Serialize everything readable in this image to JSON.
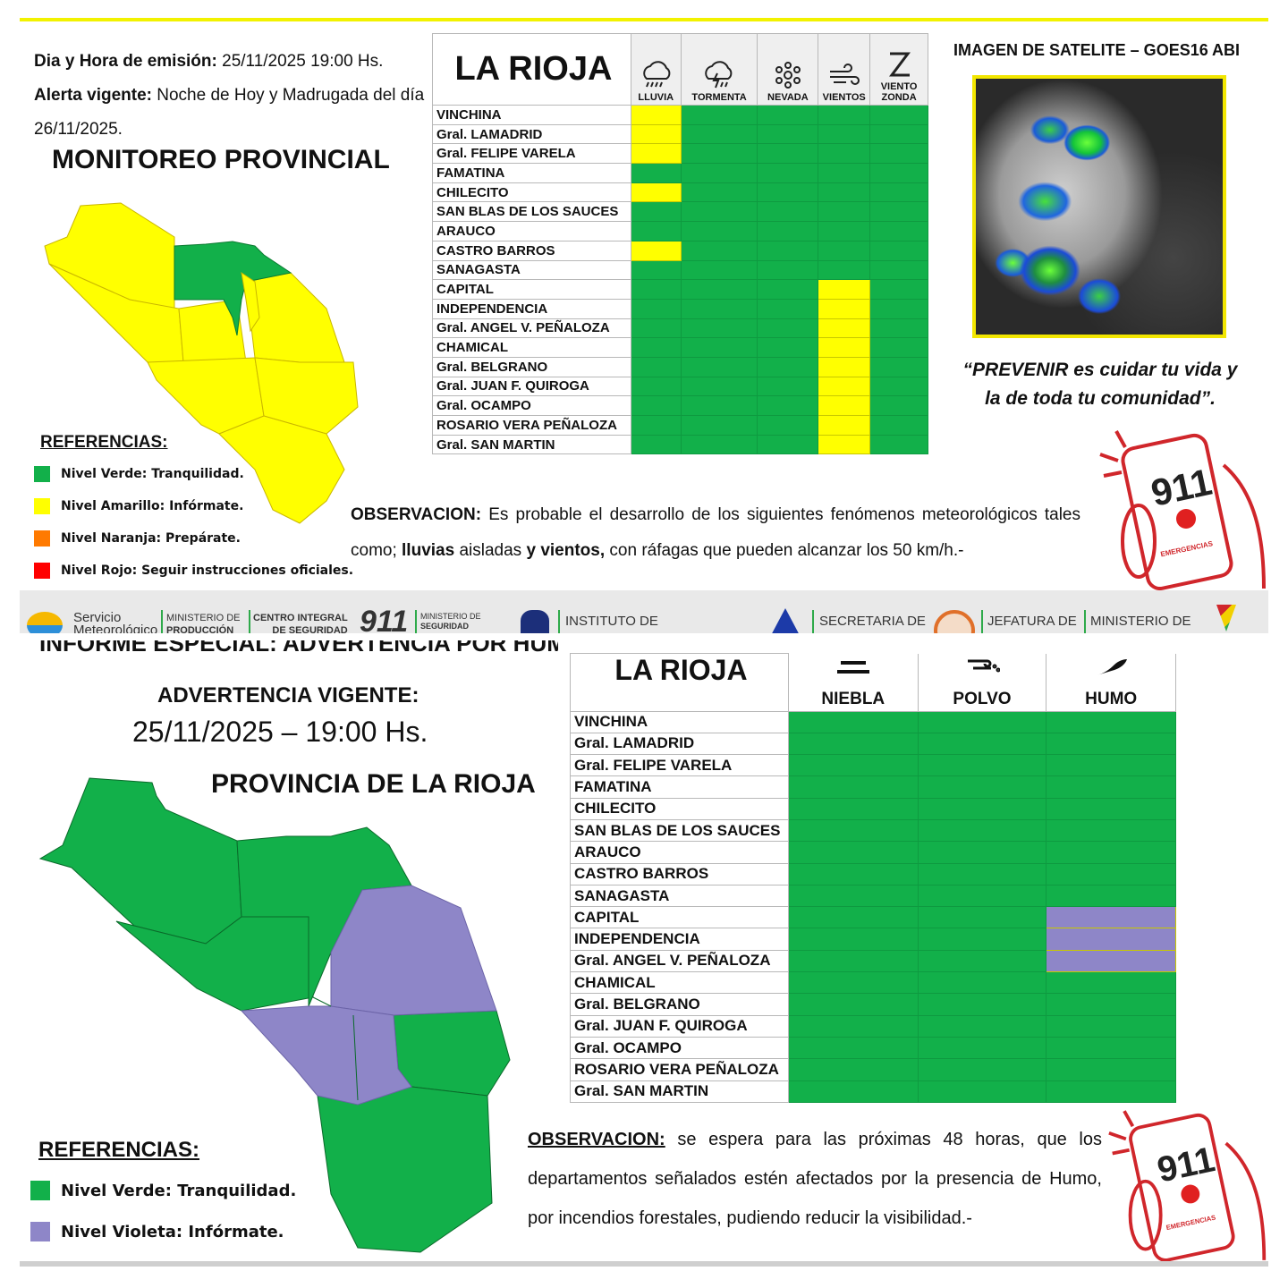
{
  "top": {
    "emission_label": "Dia y Hora de emisión:",
    "emission_value": "25/11/2025  19:00 Hs.",
    "alert_label": "Alerta vigente:",
    "alert_value": "Noche de Hoy y Madrugada del día",
    "alert_value2": "26/11/2025.",
    "title": "MONITOREO PROVINCIAL",
    "references_title": "REFERENCIAS:",
    "references": [
      {
        "label": "Nivel Verde: Tranquilidad.",
        "color": "#12b04a"
      },
      {
        "label": "Nivel Amarillo: Infórmate.",
        "color": "#ffff00"
      },
      {
        "label": "Nivel Naranja: Prepárate.",
        "color": "#ff7a00"
      },
      {
        "label": "Nivel Rojo: Seguir instrucciones oficiales.",
        "color": "#ff0000"
      }
    ],
    "table": {
      "province": "LA RIOJA",
      "columns": [
        {
          "label": "LLUVIA",
          "icon": "rain-cloud-icon"
        },
        {
          "label": "TORMENTA",
          "icon": "storm-cloud-icon"
        },
        {
          "label": "NEVADA",
          "icon": "snowflake-icon"
        },
        {
          "label": "VIENTOS",
          "icon": "wind-icon"
        },
        {
          "label": "VIENTO ZONDA",
          "icon": "zonda-icon"
        }
      ],
      "rows": [
        {
          "name": "VINCHINA",
          "levels": [
            "y",
            "g",
            "g",
            "g",
            "g"
          ]
        },
        {
          "name": "Gral. LAMADRID",
          "levels": [
            "y",
            "g",
            "g",
            "g",
            "g"
          ]
        },
        {
          "name": "Gral. FELIPE VARELA",
          "levels": [
            "y",
            "g",
            "g",
            "g",
            "g"
          ]
        },
        {
          "name": "FAMATINA",
          "levels": [
            "g",
            "g",
            "g",
            "g",
            "g"
          ]
        },
        {
          "name": "CHILECITO",
          "levels": [
            "y",
            "g",
            "g",
            "g",
            "g"
          ]
        },
        {
          "name": "SAN BLAS DE LOS SAUCES",
          "levels": [
            "g",
            "g",
            "g",
            "g",
            "g"
          ]
        },
        {
          "name": "ARAUCO",
          "levels": [
            "g",
            "g",
            "g",
            "g",
            "g"
          ]
        },
        {
          "name": "CASTRO BARROS",
          "levels": [
            "y",
            "g",
            "g",
            "g",
            "g"
          ]
        },
        {
          "name": "SANAGASTA",
          "levels": [
            "g",
            "g",
            "g",
            "g",
            "g"
          ]
        },
        {
          "name": "CAPITAL",
          "levels": [
            "g",
            "g",
            "g",
            "y",
            "g"
          ]
        },
        {
          "name": "INDEPENDENCIA",
          "levels": [
            "g",
            "g",
            "g",
            "y",
            "g"
          ]
        },
        {
          "name": "Gral. ANGEL V. PEÑALOZA",
          "levels": [
            "g",
            "g",
            "g",
            "y",
            "g"
          ]
        },
        {
          "name": "CHAMICAL",
          "levels": [
            "g",
            "g",
            "g",
            "y",
            "g"
          ]
        },
        {
          "name": "Gral. BELGRANO",
          "levels": [
            "g",
            "g",
            "g",
            "y",
            "g"
          ]
        },
        {
          "name": "Gral. JUAN F. QUIROGA",
          "levels": [
            "g",
            "g",
            "g",
            "y",
            "g"
          ]
        },
        {
          "name": "Gral. OCAMPO",
          "levels": [
            "g",
            "g",
            "g",
            "y",
            "g"
          ]
        },
        {
          "name": "ROSARIO VERA PEÑALOZA",
          "levels": [
            "g",
            "g",
            "g",
            "y",
            "g"
          ]
        },
        {
          "name": "Gral. SAN MARTIN",
          "levels": [
            "g",
            "g",
            "g",
            "y",
            "g"
          ]
        }
      ]
    },
    "satellite_title": "IMAGEN DE SATELITE – GOES16 ABI",
    "quote1": "“PREVENIR es cuidar tu vida y",
    "quote2": "la de toda tu comunidad”.",
    "obs_label": "OBSERVACION:",
    "obs_text1": "Es probable el desarrollo de los siguientes fenómenos meteorológicos tales como;",
    "obs_bold1": "lluvias",
    "obs_text2": "aisladas",
    "obs_bold2": "y vientos,",
    "obs_text3": "con ráfagas que pueden alcanzar los 50 km/h.-",
    "badge": {
      "number": "911",
      "label": "EMERGENCIAS"
    }
  },
  "logos": [
    "Servicio",
    "Meteorológico",
    "MINISTERIO DE",
    "PRODUCCIÓN",
    "CENTRO INTEGRAL",
    "DE SEGURIDAD",
    "911",
    "MINISTERIO DE",
    "SEGURIDAD",
    "INSTITUTO DE",
    "SECRETARIA DE",
    "JEFATURA DE",
    "MINISTERIO DE"
  ],
  "bottom": {
    "cut_title": "INFORME ESPECIAL: ADVERTENCIA POR HUMO",
    "warning_label": "ADVERTENCIA VIGENTE:",
    "warning_value": "25/11/2025 – 19:00 Hs.",
    "title": "PROVINCIA DE LA RIOJA",
    "references_title": "REFERENCIAS:",
    "references": [
      {
        "label": "Nivel Verde: Tranquilidad.",
        "color": "#12b04a"
      },
      {
        "label": "Nivel Violeta: Infórmate.",
        "color": "#8e86c8"
      }
    ],
    "table": {
      "province": "LA RIOJA",
      "columns": [
        {
          "label": "NIEBLA",
          "icon": "fog-icon"
        },
        {
          "label": "POLVO",
          "icon": "dust-icon"
        },
        {
          "label": "HUMO",
          "icon": "smoke-icon"
        }
      ],
      "rows": [
        {
          "name": "VINCHINA",
          "levels": [
            "g",
            "g",
            "g"
          ]
        },
        {
          "name": "Gral. LAMADRID",
          "levels": [
            "g",
            "g",
            "g"
          ]
        },
        {
          "name": "Gral. FELIPE VARELA",
          "levels": [
            "g",
            "g",
            "g"
          ]
        },
        {
          "name": "FAMATINA",
          "levels": [
            "g",
            "g",
            "g"
          ]
        },
        {
          "name": "CHILECITO",
          "levels": [
            "g",
            "g",
            "g"
          ]
        },
        {
          "name": "SAN BLAS DE LOS SAUCES",
          "levels": [
            "g",
            "g",
            "g"
          ]
        },
        {
          "name": "ARAUCO",
          "levels": [
            "g",
            "g",
            "g"
          ]
        },
        {
          "name": "CASTRO BARROS",
          "levels": [
            "g",
            "g",
            "g"
          ]
        },
        {
          "name": "SANAGASTA",
          "levels": [
            "g",
            "g",
            "g"
          ]
        },
        {
          "name": "CAPITAL",
          "levels": [
            "g",
            "g",
            "v"
          ]
        },
        {
          "name": "INDEPENDENCIA",
          "levels": [
            "g",
            "g",
            "v"
          ]
        },
        {
          "name": "Gral. ANGEL V. PEÑALOZA",
          "levels": [
            "g",
            "g",
            "v"
          ]
        },
        {
          "name": "CHAMICAL",
          "levels": [
            "g",
            "g",
            "g"
          ]
        },
        {
          "name": "Gral. BELGRANO",
          "levels": [
            "g",
            "g",
            "g"
          ]
        },
        {
          "name": "Gral. JUAN F. QUIROGA",
          "levels": [
            "g",
            "g",
            "g"
          ]
        },
        {
          "name": "Gral. OCAMPO",
          "levels": [
            "g",
            "g",
            "g"
          ]
        },
        {
          "name": "ROSARIO VERA PEÑALOZA",
          "levels": [
            "g",
            "g",
            "g"
          ]
        },
        {
          "name": "Gral. SAN MARTIN",
          "levels": [
            "g",
            "g",
            "g"
          ]
        }
      ]
    },
    "obs_label": "OBSERVACION:",
    "obs_text": "se espera para las próximas 48 horas, que los departamentos señalados estén afectados por la presencia de Humo, por incendios forestales, pudiendo reducir la visibilidad.-",
    "badge": {
      "number": "911",
      "label": "EMERGENCIAS"
    }
  }
}
